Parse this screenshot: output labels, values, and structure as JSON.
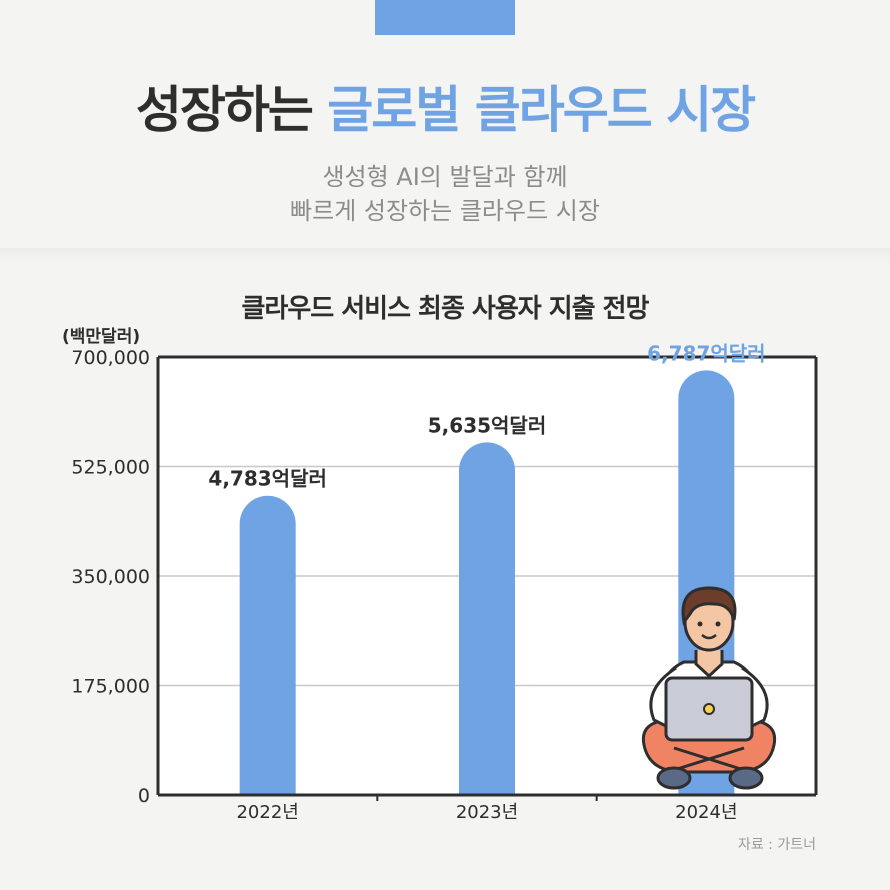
{
  "header": {
    "title_part1": "성장하는",
    "title_part2": "글로벌 클라우드 시장",
    "subtitle_line1": "생성형 AI의 발달과 함께",
    "subtitle_line2": "빠르게 성장하는 클라우드 시장"
  },
  "source": "자료 : 가트너",
  "colors": {
    "accent": "#6fa3e4",
    "text": "#2e2e2e"
  },
  "chart_data": {
    "type": "bar",
    "title": "클라우드 서비스 최종 사용자 지출 전망",
    "ylabel": "(백만달러)",
    "categories": [
      "2022년",
      "2023년",
      "2024년"
    ],
    "values": [
      478300,
      563500,
      678700
    ],
    "data_labels": [
      "4,783억달러",
      "5,635억달러",
      "6,787억달러"
    ],
    "ylim": [
      0,
      700000
    ],
    "yticks": [
      0,
      175000,
      350000,
      525000,
      700000
    ],
    "ytick_labels": [
      "0",
      "175,000",
      "350,000",
      "525,000",
      "700,000"
    ],
    "grid": true,
    "bar_color": "#6fa3e4",
    "highlight_label_color": "#6fa3e4"
  }
}
